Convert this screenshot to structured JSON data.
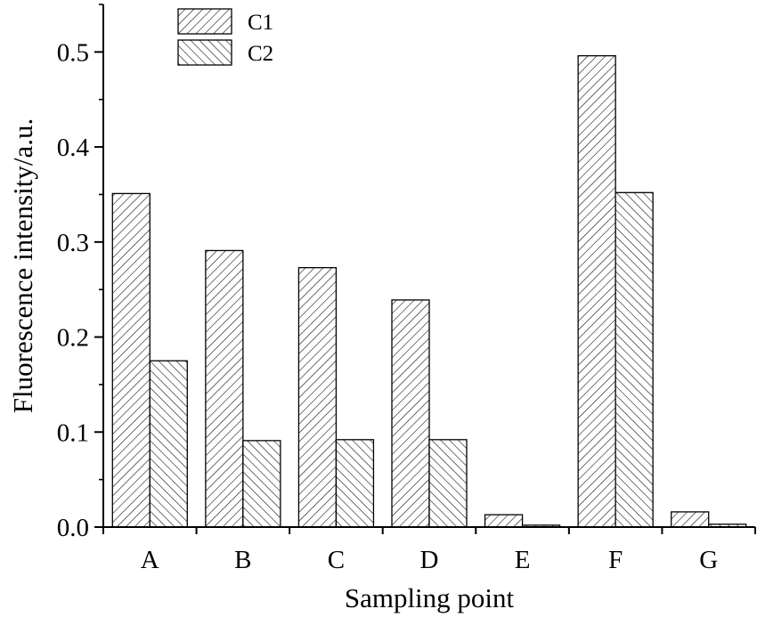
{
  "chart_data": {
    "type": "bar",
    "title": "",
    "xlabel": "Sampling point",
    "ylabel": "Fluorescence intensity/a.u.",
    "categories": [
      "A",
      "B",
      "C",
      "D",
      "E",
      "F",
      "G"
    ],
    "series": [
      {
        "name": "C1",
        "pattern": "forward-hatch",
        "values": [
          0.351,
          0.291,
          0.273,
          0.239,
          0.013,
          0.496,
          0.016
        ]
      },
      {
        "name": "C2",
        "pattern": "back-hatch",
        "values": [
          0.175,
          0.091,
          0.092,
          0.092,
          0.002,
          0.352,
          0.003
        ]
      }
    ],
    "ylim": [
      0,
      0.55
    ],
    "yticks": [
      "0.0",
      "0.1",
      "0.2",
      "0.3",
      "0.4",
      "0.5"
    ],
    "grid": false,
    "legend_position": "top-left",
    "colors": {
      "fill": "#ffffff",
      "stroke": "#000000",
      "hatch": "#000000"
    }
  }
}
